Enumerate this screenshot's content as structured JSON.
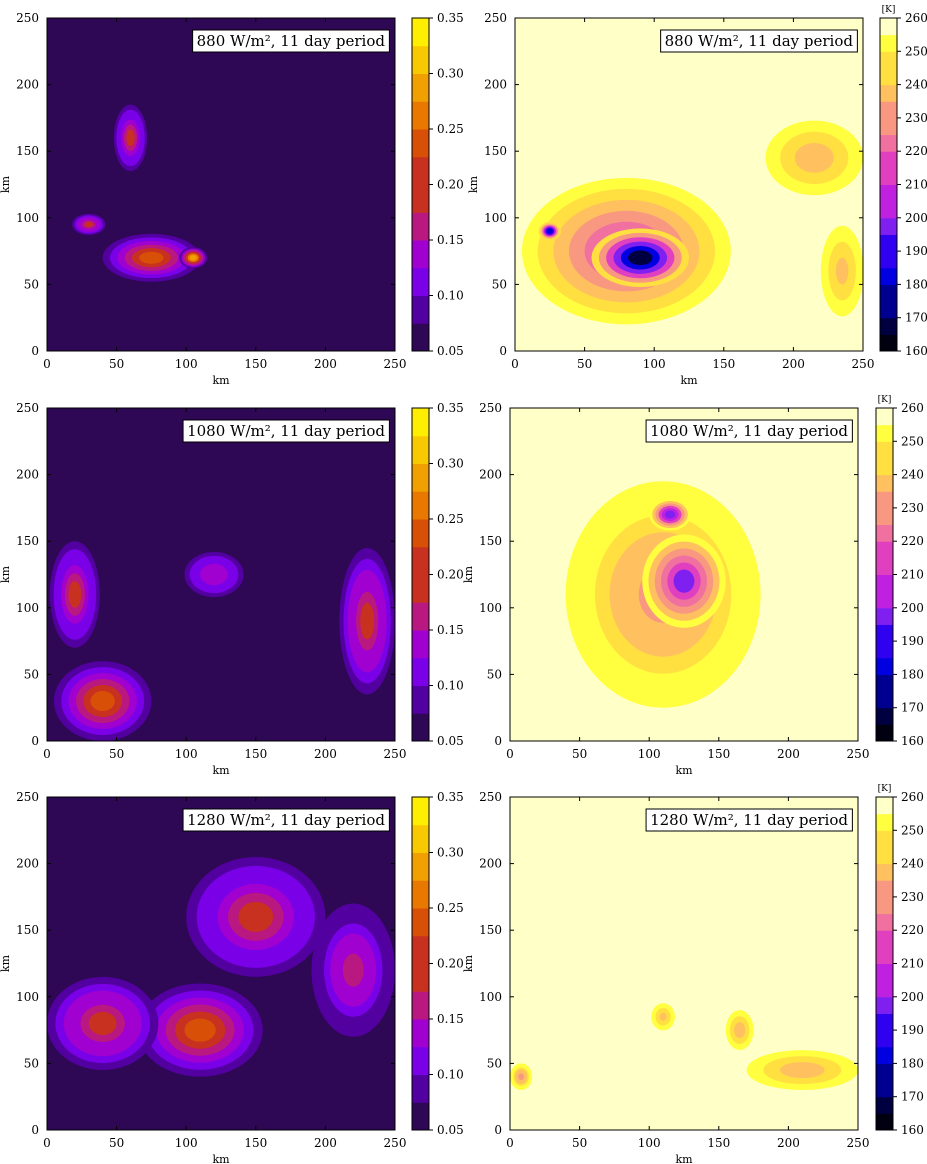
{
  "chart_data": [
    {
      "type": "heatmap",
      "quantity": "left",
      "annotation": "880 W/m², 11 day period",
      "xlabel": "km",
      "ylabel": "km",
      "xlim": [
        0,
        250
      ],
      "ylim": [
        0,
        250
      ],
      "xticks": [
        "0",
        "50",
        "100",
        "150",
        "200",
        "250"
      ],
      "yticks": [
        "0",
        "50",
        "100",
        "150",
        "200",
        "250"
      ],
      "colorbar": {
        "unit": "",
        "ticks": [
          "0.05",
          "0.10",
          "0.15",
          "0.20",
          "0.25",
          "0.30",
          "0.35"
        ],
        "range": [
          0.05,
          0.35
        ]
      },
      "features": [
        {
          "x": 75,
          "y": 70,
          "rx": 35,
          "ry": 18,
          "level": 0.6
        },
        {
          "x": 30,
          "y": 95,
          "rx": 12,
          "ry": 8,
          "level": 0.5
        },
        {
          "x": 60,
          "y": 160,
          "rx": 12,
          "ry": 25,
          "level": 0.45
        },
        {
          "x": 105,
          "y": 70,
          "rx": 10,
          "ry": 8,
          "level": 0.8
        }
      ]
    },
    {
      "type": "heatmap",
      "quantity": "right",
      "annotation": "880 W/m², 11 day period",
      "xlabel": "km",
      "ylabel": "km",
      "xlim": [
        0,
        250
      ],
      "ylim": [
        0,
        250
      ],
      "xticks": [
        "0",
        "50",
        "100",
        "150",
        "200",
        "250"
      ],
      "yticks": [
        "0",
        "50",
        "100",
        "150",
        "200",
        "250"
      ],
      "colorbar": {
        "unit": "[K]",
        "ticks": [
          "160",
          "170",
          "180",
          "190",
          "200",
          "210",
          "220",
          "230",
          "240",
          "250",
          "260"
        ],
        "range": [
          160,
          260
        ]
      },
      "features": [
        {
          "x": 80,
          "y": 75,
          "rx": 75,
          "ry": 55,
          "level": 0.45
        },
        {
          "x": 90,
          "y": 70,
          "rx": 35,
          "ry": 22,
          "level": 0.9
        },
        {
          "x": 25,
          "y": 90,
          "rx": 8,
          "ry": 7,
          "level": 0.8
        },
        {
          "x": 215,
          "y": 145,
          "rx": 35,
          "ry": 28,
          "level": 0.25
        },
        {
          "x": 235,
          "y": 60,
          "rx": 18,
          "ry": 40,
          "level": 0.2
        }
      ]
    },
    {
      "type": "heatmap",
      "quantity": "left",
      "annotation": "1080 W/m², 11 day period",
      "xlabel": "km",
      "ylabel": "km",
      "xlim": [
        0,
        250
      ],
      "ylim": [
        0,
        250
      ],
      "xticks": [
        "0",
        "50",
        "100",
        "150",
        "200",
        "250"
      ],
      "yticks": [
        "0",
        "50",
        "100",
        "150",
        "200",
        "250"
      ],
      "colorbar": {
        "unit": "",
        "ticks": [
          "0.05",
          "0.10",
          "0.15",
          "0.20",
          "0.25",
          "0.30",
          "0.35"
        ],
        "range": [
          0.05,
          0.35
        ]
      },
      "features": [
        {
          "x": 40,
          "y": 30,
          "rx": 35,
          "ry": 30,
          "level": 0.55
        },
        {
          "x": 20,
          "y": 110,
          "rx": 18,
          "ry": 40,
          "level": 0.45
        },
        {
          "x": 230,
          "y": 90,
          "rx": 20,
          "ry": 55,
          "level": 0.5
        },
        {
          "x": 120,
          "y": 125,
          "rx": 25,
          "ry": 20,
          "level": 0.3
        }
      ]
    },
    {
      "type": "heatmap",
      "quantity": "right",
      "annotation": "1080 W/m², 11 day period",
      "xlabel": "km",
      "ylabel": "km",
      "xlim": [
        0,
        250
      ],
      "ylim": [
        0,
        250
      ],
      "xticks": [
        "0",
        "50",
        "100",
        "150",
        "200",
        "250"
      ],
      "yticks": [
        "0",
        "50",
        "100",
        "150",
        "200",
        "250"
      ],
      "colorbar": {
        "unit": "[K]",
        "ticks": [
          "160",
          "170",
          "180",
          "190",
          "200",
          "210",
          "220",
          "230",
          "240",
          "250",
          "260"
        ],
        "range": [
          160,
          260
        ]
      },
      "features": [
        {
          "x": 110,
          "y": 110,
          "rx": 70,
          "ry": 85,
          "level": 0.3
        },
        {
          "x": 125,
          "y": 120,
          "rx": 30,
          "ry": 35,
          "level": 0.6
        },
        {
          "x": 115,
          "y": 170,
          "rx": 15,
          "ry": 12,
          "level": 0.65
        }
      ]
    },
    {
      "type": "heatmap",
      "quantity": "left",
      "annotation": "1280 W/m², 11 day period",
      "xlabel": "km",
      "ylabel": "km",
      "xlim": [
        0,
        250
      ],
      "ylim": [
        0,
        250
      ],
      "xticks": [
        "0",
        "50",
        "100",
        "150",
        "200",
        "250"
      ],
      "yticks": [
        "0",
        "50",
        "100",
        "150",
        "200",
        "250"
      ],
      "colorbar": {
        "unit": "",
        "ticks": [
          "0.05",
          "0.10",
          "0.15",
          "0.20",
          "0.25",
          "0.30",
          "0.35"
        ],
        "range": [
          0.05,
          0.35
        ]
      },
      "features": [
        {
          "x": 110,
          "y": 75,
          "rx": 45,
          "ry": 35,
          "level": 0.6
        },
        {
          "x": 40,
          "y": 80,
          "rx": 40,
          "ry": 35,
          "level": 0.5
        },
        {
          "x": 150,
          "y": 160,
          "rx": 50,
          "ry": 45,
          "level": 0.45
        },
        {
          "x": 220,
          "y": 120,
          "rx": 30,
          "ry": 50,
          "level": 0.4
        }
      ]
    },
    {
      "type": "heatmap",
      "quantity": "right",
      "annotation": "1280 W/m², 11 day period",
      "xlabel": "km",
      "ylabel": "km",
      "xlim": [
        0,
        250
      ],
      "ylim": [
        0,
        250
      ],
      "xticks": [
        "0",
        "50",
        "100",
        "150",
        "200",
        "250"
      ],
      "yticks": [
        "0",
        "50",
        "100",
        "150",
        "200",
        "250"
      ],
      "colorbar": {
        "unit": "[K]",
        "ticks": [
          "160",
          "170",
          "180",
          "190",
          "200",
          "210",
          "220",
          "230",
          "240",
          "250",
          "260"
        ],
        "range": [
          160,
          260
        ]
      },
      "features": [
        {
          "x": 210,
          "y": 45,
          "rx": 40,
          "ry": 15,
          "level": 0.25
        },
        {
          "x": 8,
          "y": 40,
          "rx": 8,
          "ry": 10,
          "level": 0.3
        },
        {
          "x": 110,
          "y": 85,
          "rx": 10,
          "ry": 12,
          "level": 0.2
        },
        {
          "x": 165,
          "y": 75,
          "rx": 10,
          "ry": 15,
          "level": 0.25
        }
      ]
    }
  ],
  "colors": {
    "left_scale": [
      "#2e0854",
      "#5200a0",
      "#7a00e8",
      "#a000d0",
      "#b81880",
      "#c83020",
      "#d85008",
      "#e87800",
      "#f0a000",
      "#f8c800",
      "#ffee00"
    ],
    "right_scale": [
      "#000010",
      "#000040",
      "#000090",
      "#0000e0",
      "#3000f0",
      "#8020f0",
      "#c020e0",
      "#e040c0",
      "#f070a0",
      "#f89880",
      "#ffc060",
      "#ffe040",
      "#ffff40",
      "#ffffc8"
    ]
  }
}
